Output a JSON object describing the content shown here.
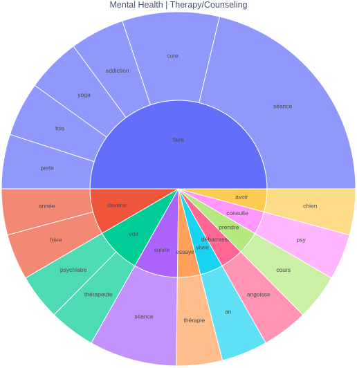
{
  "chart_data": {
    "type": "sunburst",
    "title": "Mental Health | Therapy/Counseling",
    "root": [
      {
        "label": "faire",
        "color": "#636efa",
        "value": 50,
        "children": [
          {
            "label": "séance",
            "value": 18,
            "color": "#9099fb"
          },
          {
            "label": "cure",
            "value": 7.5,
            "color": "#9099fb"
          },
          {
            "label": "addiction",
            "value": 4.2,
            "color": "#9099fb"
          },
          {
            "label": "yoga",
            "value": 4.2,
            "color": "#9099fb"
          },
          {
            "label": "fois",
            "value": 4.2,
            "color": "#9099fb"
          },
          {
            "label": "perte",
            "value": 4.2,
            "color": "#9099fb"
          }
        ]
      },
      {
        "label": "devenir",
        "color": "#ef553b",
        "value": 8.4,
        "children": [
          {
            "label": "année",
            "value": 4.2,
            "color": "#f38875"
          },
          {
            "label": "frère",
            "value": 4.2,
            "color": "#f38875"
          }
        ]
      },
      {
        "label": "voir",
        "color": "#00cc96",
        "value": 8.4,
        "children": [
          {
            "label": "psychiatre",
            "value": 4.2,
            "color": "#4ddbb5"
          },
          {
            "label": "thérapeute",
            "value": 4.2,
            "color": "#4ddbb5"
          }
        ]
      },
      {
        "label": "suivre",
        "color": "#ab63fa",
        "value": 8.0,
        "children": [
          {
            "label": "séance",
            "value": 8.0,
            "color": "#c492fb"
          }
        ]
      },
      {
        "label": "essayer",
        "color": "#ffa15a",
        "value": 4.2,
        "children": [
          {
            "label": "thérapie",
            "value": 4.2,
            "color": "#ffbd8c"
          }
        ]
      },
      {
        "label": "vivre",
        "color": "#19d3f3",
        "value": 4.2,
        "children": [
          {
            "label": "an",
            "value": 4.2,
            "color": "#5ee0f7"
          }
        ]
      },
      {
        "label": "débarrasser",
        "color": "#ff6692",
        "value": 4.2,
        "children": [
          {
            "label": "angoisse",
            "value": 4.2,
            "color": "#ff94b3"
          }
        ]
      },
      {
        "label": "prendre",
        "color": "#b6e880",
        "value": 4.2,
        "children": [
          {
            "label": "cours",
            "value": 4.2,
            "color": "#ccefa6"
          }
        ]
      },
      {
        "label": "consulte",
        "color": "#ff97ff",
        "value": 4.2,
        "children": [
          {
            "label": "psy",
            "value": 4.2,
            "color": "#ffb6ff"
          }
        ]
      },
      {
        "label": "avoir",
        "color": "#fecb52",
        "value": 4.2,
        "children": [
          {
            "label": "chien",
            "value": 4.2,
            "color": "#fedb86"
          }
        ]
      }
    ]
  }
}
